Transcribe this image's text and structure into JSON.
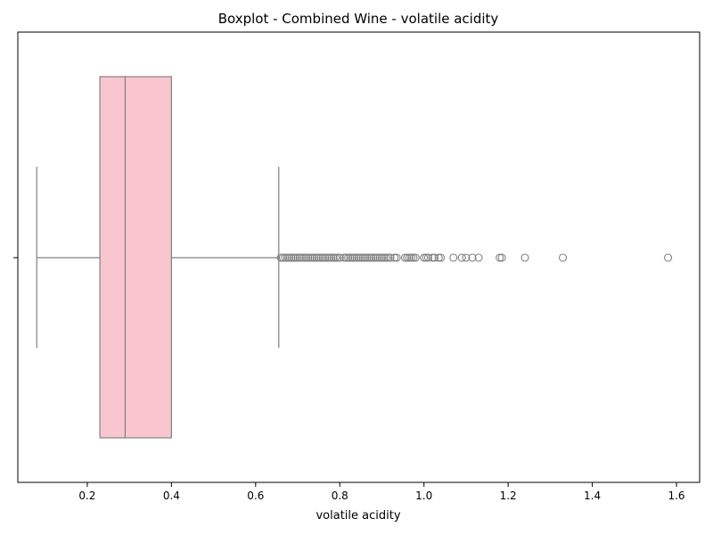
{
  "chart_data": {
    "type": "boxplot",
    "title": "Boxplot - Combined Wine - volatile acidity",
    "xlabel": "volatile acidity",
    "ylabel": "",
    "xlim": [
      0.035,
      1.655
    ],
    "x_ticks": [
      0.2,
      0.4,
      0.6,
      0.8,
      1.0,
      1.2,
      1.4,
      1.6
    ],
    "x_tick_labels": [
      "0.2",
      "0.4",
      "0.6",
      "0.8",
      "1.0",
      "1.2",
      "1.4",
      "1.6"
    ],
    "grid": false,
    "orientation": "horizontal",
    "box": {
      "whisker_low": 0.08,
      "q1": 0.23,
      "median": 0.29,
      "q3": 0.4,
      "whisker_high": 0.655
    },
    "outliers": [
      0.66,
      0.665,
      0.67,
      0.675,
      0.68,
      0.685,
      0.69,
      0.695,
      0.7,
      0.705,
      0.71,
      0.715,
      0.72,
      0.725,
      0.73,
      0.735,
      0.74,
      0.745,
      0.75,
      0.755,
      0.76,
      0.765,
      0.77,
      0.775,
      0.78,
      0.785,
      0.79,
      0.795,
      0.8,
      0.81,
      0.815,
      0.82,
      0.825,
      0.83,
      0.835,
      0.84,
      0.845,
      0.85,
      0.855,
      0.86,
      0.865,
      0.87,
      0.875,
      0.88,
      0.885,
      0.89,
      0.895,
      0.9,
      0.905,
      0.91,
      0.915,
      0.92,
      0.93,
      0.935,
      0.955,
      0.96,
      0.965,
      0.97,
      0.975,
      0.98,
      1.0,
      1.005,
      1.01,
      1.02,
      1.025,
      1.035,
      1.04,
      1.07,
      1.09,
      1.1,
      1.115,
      1.13,
      1.18,
      1.185,
      1.24,
      1.33,
      1.58
    ],
    "colors": {
      "box_fill": "#f9c6d0",
      "line": "#808080",
      "outlier_edge": "#808080"
    }
  }
}
